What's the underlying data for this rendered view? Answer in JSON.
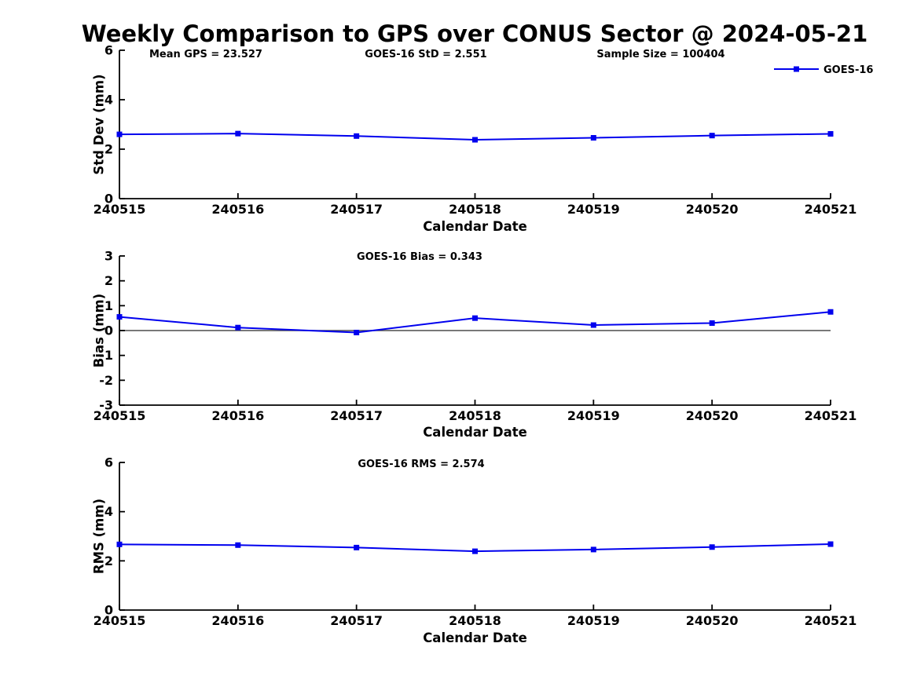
{
  "title": "Weekly Comparison to GPS over CONUS Sector @ 2024-05-21",
  "legend": {
    "label": "GOES-16",
    "marker": "filled-square"
  },
  "colors": {
    "series_line": "#0000EE",
    "axis": "#000000",
    "zero_line": "#4d4d4d",
    "background": "#FFFFFF"
  },
  "chart_data": [
    {
      "type": "line",
      "name": "std-dev-vs-date",
      "annotations": [
        "Mean GPS = 23.527",
        "GOES-16 StD = 2.551",
        "Sample Size = 100404"
      ],
      "xlabel": "Calendar Date",
      "ylabel": "Std Dev (mm)",
      "categories": [
        "240515",
        "240516",
        "240517",
        "240518",
        "240519",
        "240520",
        "240521"
      ],
      "yticks": [
        0,
        2,
        4,
        6
      ],
      "ylim": [
        0,
        6
      ],
      "grid": false,
      "zero_line": false,
      "legend_position": "upper-right",
      "series": [
        {
          "name": "GOES-16",
          "values": [
            2.6,
            2.63,
            2.53,
            2.38,
            2.46,
            2.55,
            2.62
          ]
        }
      ]
    },
    {
      "type": "line",
      "name": "bias-vs-date",
      "annotations": [
        "GOES-16 Bias  = 0.343"
      ],
      "xlabel": "Calendar Date",
      "ylabel": "Bias (mm)",
      "categories": [
        "240515",
        "240516",
        "240517",
        "240518",
        "240519",
        "240520",
        "240521"
      ],
      "yticks": [
        3,
        2,
        1,
        0,
        -1,
        -2,
        -3
      ],
      "ylim": [
        -3,
        3
      ],
      "grid": false,
      "zero_line": true,
      "series": [
        {
          "name": "GOES-16",
          "values": [
            0.55,
            0.12,
            -0.08,
            0.5,
            0.22,
            0.3,
            0.75
          ]
        }
      ]
    },
    {
      "type": "line",
      "name": "rms-vs-date",
      "annotations": [
        "GOES-16 RMS = 2.574"
      ],
      "xlabel": "Calendar Date",
      "ylabel": "RMS (mm)",
      "categories": [
        "240515",
        "240516",
        "240517",
        "240518",
        "240519",
        "240520",
        "240521"
      ],
      "yticks": [
        0,
        2,
        4,
        6
      ],
      "ylim": [
        0,
        6
      ],
      "grid": false,
      "zero_line": false,
      "series": [
        {
          "name": "GOES-16",
          "values": [
            2.67,
            2.64,
            2.54,
            2.39,
            2.46,
            2.56,
            2.68
          ]
        }
      ]
    }
  ]
}
